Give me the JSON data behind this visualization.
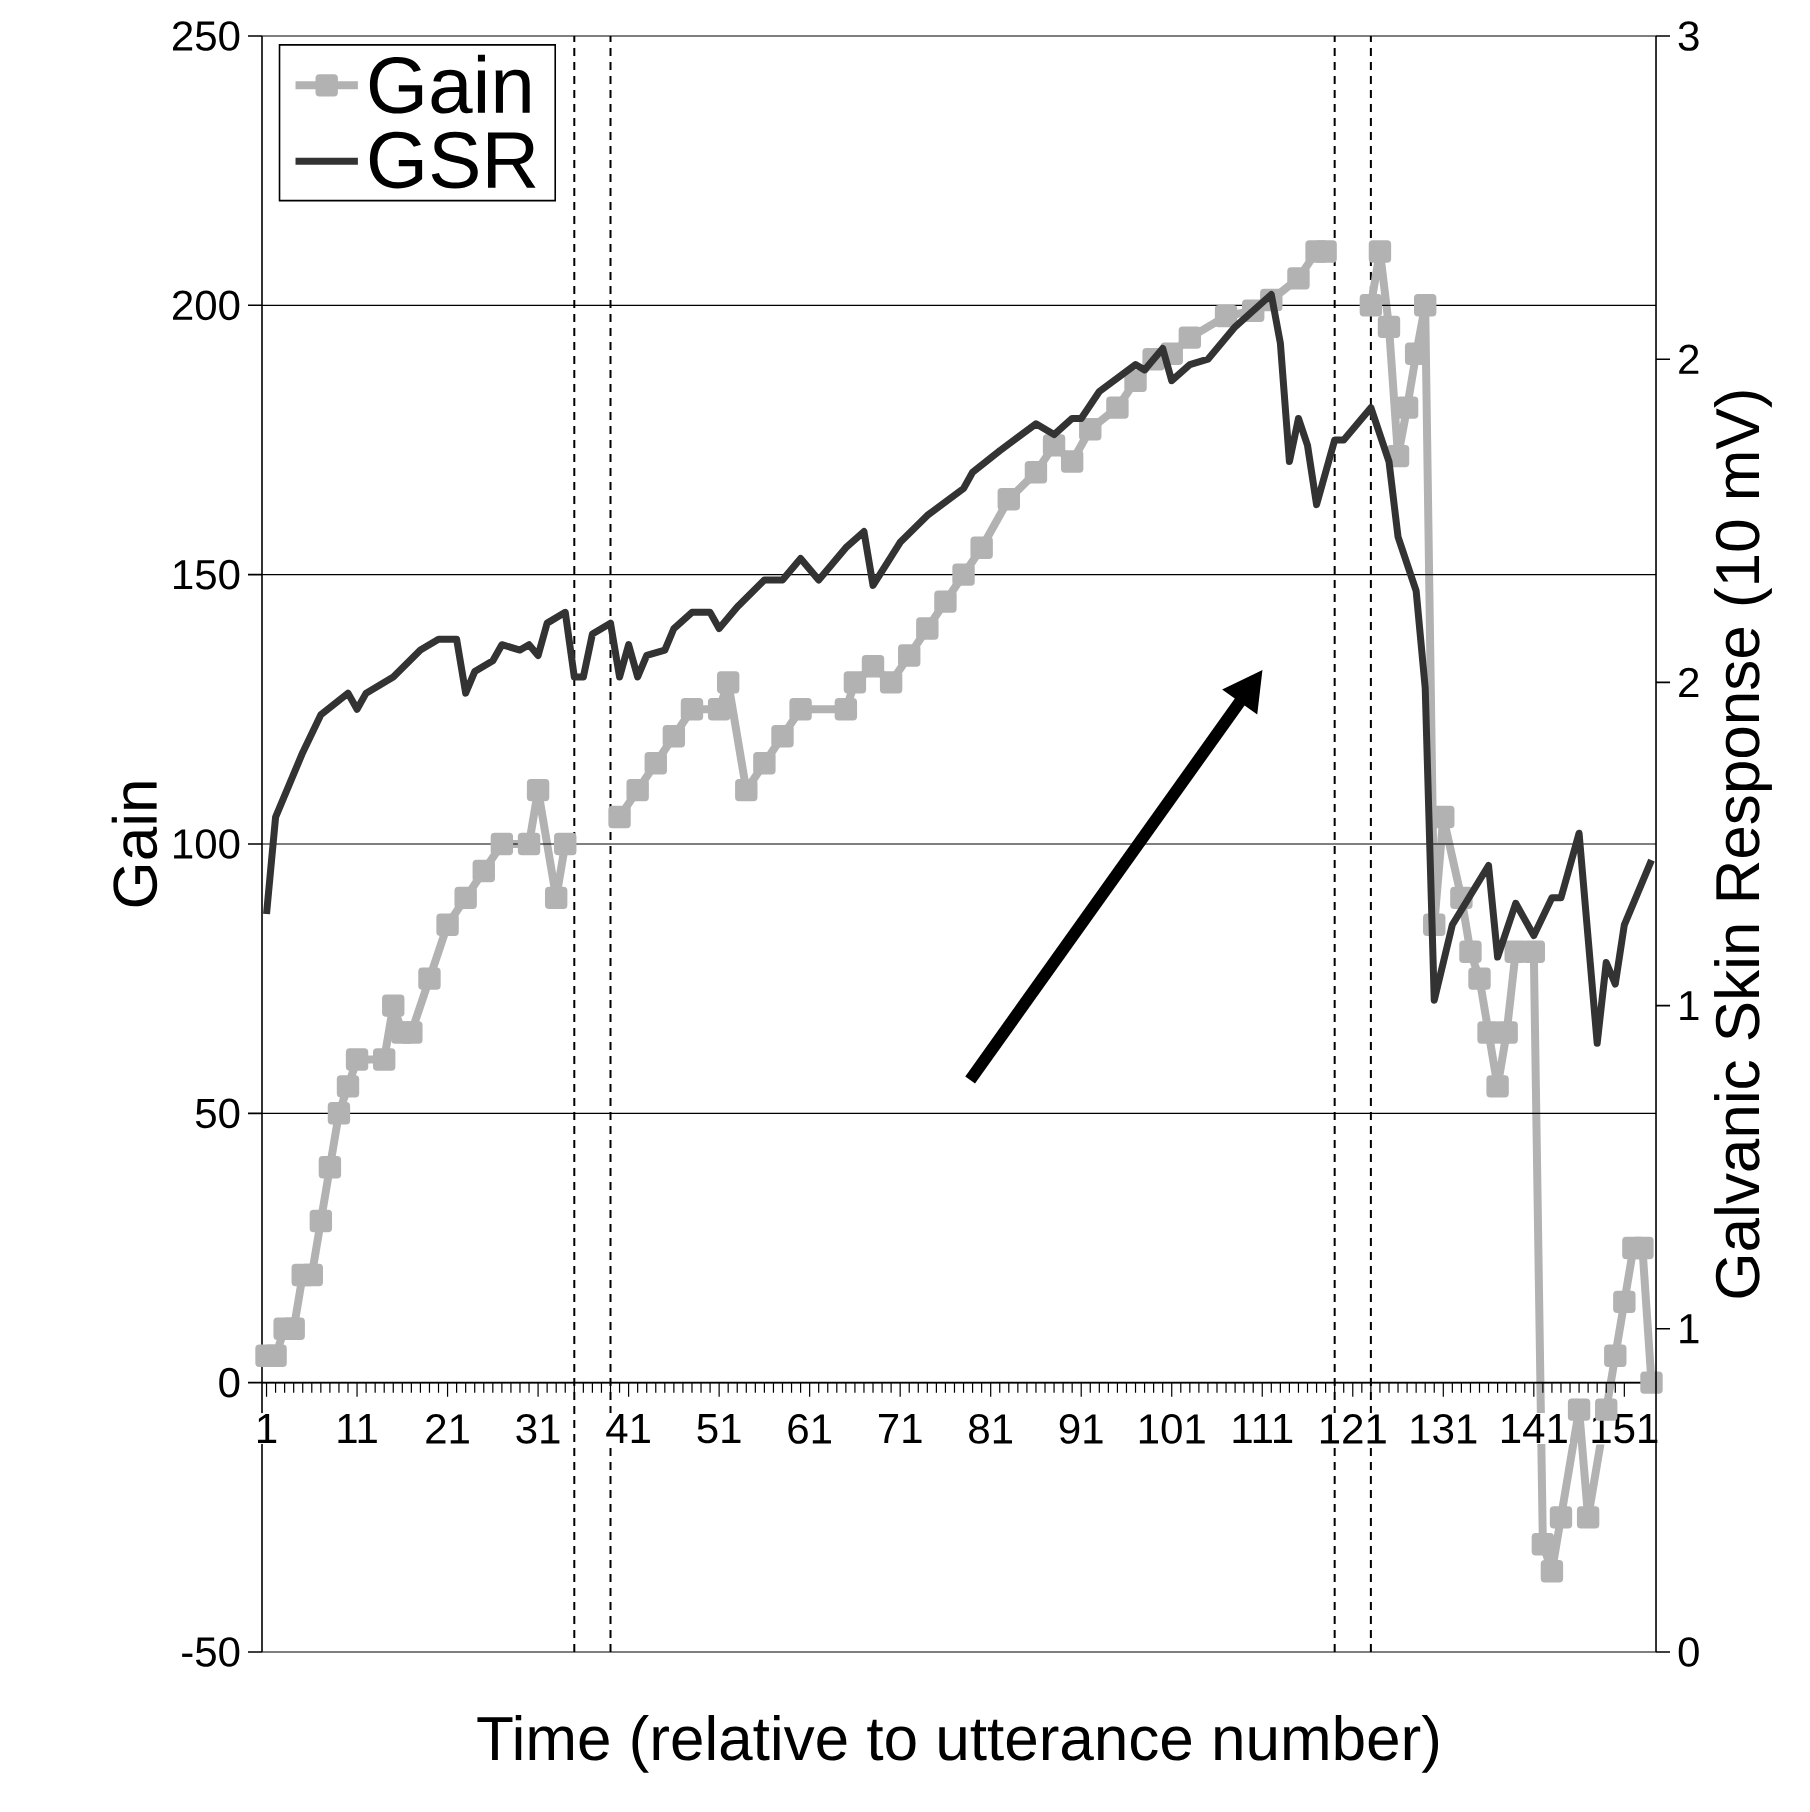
{
  "chart_data": {
    "type": "line",
    "xlabel": "Time (relative to utterance number)",
    "ylabel": "Gain",
    "y2label": "Galvanic Skin Response (10 mV)",
    "xlim": [
      0.5,
      154.5
    ],
    "xticks": [
      1,
      11,
      21,
      31,
      41,
      51,
      61,
      71,
      81,
      91,
      101,
      111,
      121,
      131,
      141,
      151
    ],
    "ylim": [
      -50,
      250
    ],
    "yticks": [
      -50,
      0,
      50,
      100,
      150,
      200,
      250
    ],
    "y2lim": [
      0,
      3
    ],
    "y2ticks": [
      0,
      {
        "value": 0.6,
        "label": "1"
      },
      {
        "value": 1.2,
        "label": "1"
      },
      {
        "value": 1.8,
        "label": "2"
      },
      {
        "value": 2.4,
        "label": "2"
      },
      3
    ],
    "grid": "y",
    "legend": "top left",
    "ref_lines": [
      {
        "axis": "x",
        "value": 35,
        "color": "#000000",
        "line_style": "dashed"
      },
      {
        "axis": "x",
        "value": 39,
        "color": "#000000",
        "line_style": "dashed"
      },
      {
        "axis": "x",
        "value": 119,
        "color": "#000000",
        "line_style": "dashed"
      },
      {
        "axis": "x",
        "value": 123,
        "color": "#000000",
        "line_style": "dashed"
      }
    ],
    "series": [
      {
        "name": "Gain",
        "color": "#b2b2b2",
        "marker": "square",
        "axis": "y",
        "x": [
          1,
          2,
          3,
          4,
          5,
          6,
          7,
          8,
          9,
          10,
          11,
          14,
          15,
          16,
          17,
          19,
          21,
          23,
          25,
          27,
          30,
          31,
          33,
          34,
          37,
          40,
          42,
          44,
          46,
          48,
          51,
          52,
          54,
          56,
          58,
          60,
          65,
          66,
          68,
          70,
          72,
          74,
          76,
          78,
          80,
          83,
          86,
          88,
          90,
          92,
          95,
          97,
          99,
          101,
          103,
          107,
          110,
          112,
          115,
          117,
          118,
          120,
          123,
          124,
          125,
          126,
          127,
          128,
          129,
          130,
          131,
          133,
          134,
          135,
          136,
          137,
          138,
          139,
          141,
          142,
          143,
          144,
          146,
          147,
          149,
          150,
          151,
          152,
          153,
          154
        ],
        "values": [
          5,
          5,
          10,
          10,
          20,
          20,
          30,
          40,
          50,
          55,
          60,
          60,
          70,
          65,
          65,
          75,
          85,
          90,
          95,
          100,
          100,
          110,
          90,
          100,
          null,
          105,
          110,
          115,
          120,
          125,
          125,
          130,
          110,
          115,
          120,
          125,
          125,
          130,
          133,
          130,
          135,
          140,
          145,
          150,
          155,
          164,
          169,
          174,
          171,
          177,
          181,
          186,
          190,
          191,
          194,
          198,
          199,
          201,
          205,
          210,
          210,
          null,
          200,
          210,
          196,
          172,
          181,
          191,
          200,
          85,
          105,
          90,
          80,
          75,
          65,
          55,
          65,
          80,
          80,
          -30,
          -35,
          -25,
          -5,
          -25,
          -5,
          5,
          15,
          25,
          25,
          0
        ]
      },
      {
        "name": "GSR",
        "color": "#333333",
        "marker": "none",
        "axis": "y2",
        "x": [
          1,
          2,
          5,
          7,
          10,
          11,
          12,
          15,
          18,
          20,
          22,
          23,
          24,
          26,
          27,
          29,
          30,
          31,
          32,
          34,
          35,
          36,
          37,
          39,
          40,
          41,
          42,
          43,
          45,
          46,
          48,
          50,
          51,
          53,
          56,
          58,
          60,
          62,
          65,
          67,
          68,
          71,
          74,
          78,
          79,
          82,
          86,
          88,
          90,
          91,
          93,
          97,
          98,
          100,
          101,
          103,
          105,
          108,
          112,
          113,
          114,
          115,
          116,
          117,
          119,
          120,
          123,
          125,
          126,
          128,
          129,
          130,
          132,
          136,
          137,
          139,
          141,
          143,
          144,
          146,
          148,
          149,
          150,
          151,
          154
        ],
        "values": [
          1.37,
          1.55,
          1.67,
          1.74,
          1.78,
          1.75,
          1.78,
          1.81,
          1.86,
          1.88,
          1.88,
          1.78,
          1.82,
          1.84,
          1.87,
          1.86,
          1.87,
          1.85,
          1.91,
          1.93,
          1.81,
          1.81,
          1.89,
          1.91,
          1.81,
          1.87,
          1.81,
          1.85,
          1.86,
          1.9,
          1.93,
          1.93,
          1.9,
          1.94,
          1.99,
          1.99,
          2.03,
          1.99,
          2.05,
          2.08,
          1.98,
          2.06,
          2.11,
          2.16,
          2.19,
          2.23,
          2.28,
          2.26,
          2.29,
          2.29,
          2.34,
          2.39,
          2.38,
          2.42,
          2.36,
          2.39,
          2.4,
          2.46,
          2.52,
          2.43,
          2.21,
          2.29,
          2.24,
          2.13,
          2.25,
          2.25,
          2.31,
          2.21,
          2.07,
          1.97,
          1.79,
          1.21,
          1.35,
          1.46,
          1.29,
          1.39,
          1.33,
          1.4,
          1.4,
          1.52,
          1.13,
          1.28,
          1.24,
          1.35,
          1.47
        ]
      }
    ]
  }
}
